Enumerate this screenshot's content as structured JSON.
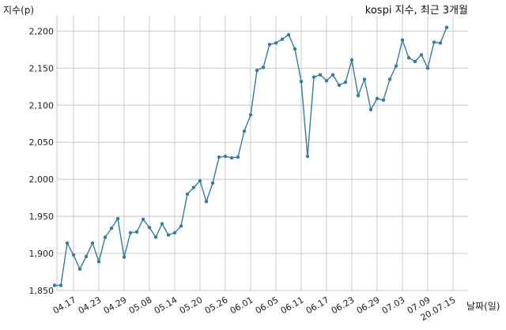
{
  "chart_data": {
    "type": "line",
    "title": "kospi 지수, 최근 3개월",
    "xlabel": "날짜(일)",
    "ylabel": "지수(p)",
    "ylim": [
      1850,
      2210
    ],
    "yticks": [
      1850,
      1900,
      1950,
      2000,
      2050,
      2100,
      2150,
      2200
    ],
    "ytick_labels": [
      "1,850",
      "1,900",
      "1,950",
      "2,000",
      "2,050",
      "2,100",
      "2,150",
      "2,200"
    ],
    "xtick_labels": [
      "04.17",
      "04.23",
      "04.29",
      "05.08",
      "05.14",
      "05.20",
      "05.26",
      "06.01",
      "06.05",
      "06.11",
      "06.17",
      "06.23",
      "06.29",
      "07.03",
      "07.09",
      "20.07.15"
    ],
    "xtick_positions": [
      3,
      7,
      11,
      15,
      19,
      23,
      27,
      31,
      35,
      39,
      43,
      47,
      51,
      55,
      59,
      63
    ],
    "grid": true,
    "color": "#2f7ea8",
    "series": [
      {
        "values": [
          1857,
          1857,
          1914,
          1898,
          1879,
          1896,
          1914,
          1889,
          1922,
          1934,
          1947,
          1895,
          1928,
          1929,
          1946,
          1935,
          1922,
          1940,
          1925,
          1928,
          1937,
          1980,
          1989,
          1998,
          1970,
          1995,
          2030,
          2031,
          2029,
          2030,
          2065,
          2087,
          2147,
          2151,
          2182,
          2184,
          2189,
          2195,
          2176,
          2132,
          2031,
          2138,
          2141,
          2133,
          2141,
          2127,
          2131,
          2161,
          2113,
          2135,
          2094,
          2109,
          2107,
          2135,
          2153,
          2188,
          2164,
          2159,
          2168,
          2150,
          2185,
          2184,
          2205
        ]
      }
    ]
  }
}
